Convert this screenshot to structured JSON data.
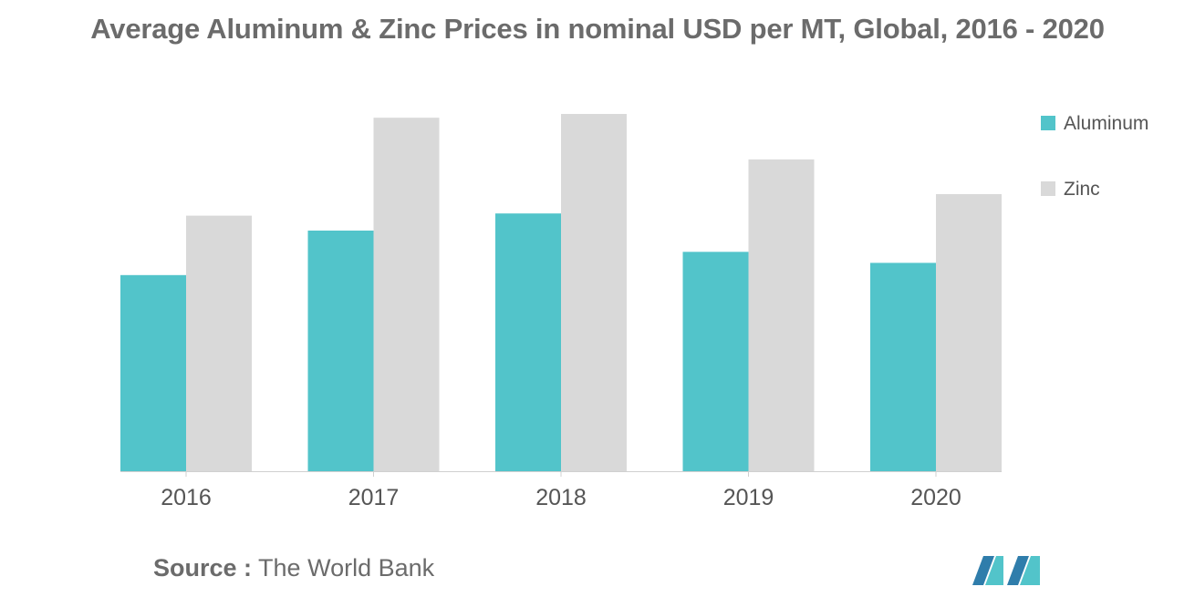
{
  "title": "Average Aluminum & Zinc Prices in nominal USD per MT, Global, 2016 - 2020",
  "source": {
    "label": "Source :",
    "text": "The World Bank"
  },
  "colors": {
    "aluminum": "#52c4ca",
    "zinc": "#d9d9d9",
    "text": "#6b6b6b"
  },
  "chart_data": {
    "type": "bar",
    "categories": [
      "2016",
      "2017",
      "2018",
      "2019",
      "2020"
    ],
    "series": [
      {
        "name": "Aluminum",
        "values": [
          1604,
          1968,
          2108,
          1794,
          1704
        ]
      },
      {
        "name": "Zinc",
        "values": [
          2090,
          2891,
          2922,
          2550,
          2266
        ]
      }
    ],
    "legend": "right",
    "grid": false
  }
}
